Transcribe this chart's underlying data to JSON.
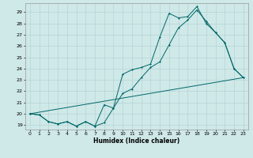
{
  "xlabel": "Humidex (Indice chaleur)",
  "xlim": [
    -0.5,
    23.5
  ],
  "ylim": [
    18.6,
    29.8
  ],
  "yticks": [
    19,
    20,
    21,
    22,
    23,
    24,
    25,
    26,
    27,
    28,
    29
  ],
  "xticks": [
    0,
    1,
    2,
    3,
    4,
    5,
    6,
    7,
    8,
    9,
    10,
    11,
    12,
    13,
    14,
    15,
    16,
    17,
    18,
    19,
    20,
    21,
    22,
    23
  ],
  "background_color": "#cfe8e8",
  "line_color": "#006868",
  "grid_color": "#b0d0d0",
  "line1_y": [
    20.0,
    19.9,
    19.3,
    19.1,
    19.3,
    18.9,
    19.3,
    18.9,
    20.8,
    20.5,
    23.5,
    23.9,
    24.1,
    24.4,
    26.8,
    28.9,
    28.5,
    28.6,
    29.5,
    28.0,
    27.2,
    26.3,
    24.0,
    23.2
  ],
  "line2_y": [
    20.0,
    19.9,
    19.3,
    19.1,
    19.3,
    18.9,
    19.3,
    18.9,
    19.2,
    20.5,
    21.8,
    22.2,
    23.2,
    24.1,
    24.6,
    26.1,
    27.6,
    28.3,
    29.2,
    28.2,
    27.2,
    26.3,
    24.0,
    23.2
  ],
  "line3_y": [
    20.0,
    23.2
  ]
}
